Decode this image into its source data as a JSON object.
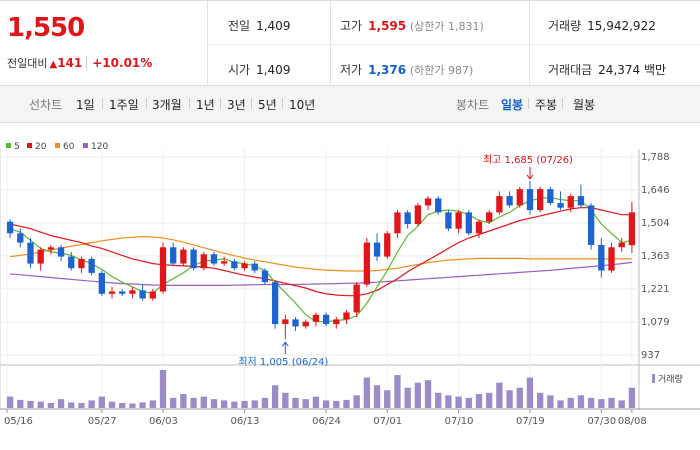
{
  "quote": {
    "price": "1,550",
    "change_label": "전일대비",
    "change_arrow": "▲",
    "change_value": "141",
    "change_pct": "+10.01%",
    "prev_close_label": "전일",
    "prev_close": "1,409",
    "open_label": "시가",
    "open": "1,409",
    "high_label": "고가",
    "high": "1,595",
    "upper_limit": "(상한가 1,831)",
    "low_label": "저가",
    "low": "1,376",
    "lower_limit": "(하한가 987)",
    "volume_label": "거래량",
    "volume": "15,942,922",
    "amount_label": "거래대금",
    "amount": "24,374",
    "amount_unit": "백만"
  },
  "toolbar": {
    "period_label": "선차트",
    "periods": [
      "1일",
      "1주일",
      "3개월",
      "1년",
      "3년",
      "5년",
      "10년"
    ],
    "candle_label": "봉차트",
    "candles": [
      "일봉",
      "주봉",
      "월봉"
    ],
    "active_candle": "일봉"
  },
  "colors": {
    "up": "#e0161b",
    "down": "#1e64d0",
    "ma5": "#5cb82e",
    "ma20": "#e0161b",
    "ma60": "#f08f1e",
    "ma120": "#9a5ec2",
    "volume": "#9b8cc9"
  },
  "chart_data": {
    "type": "candlestick",
    "x_ticks": [
      "05/16",
      "05/27",
      "06/03",
      "06/13",
      "06/24",
      "07/01",
      "07/10",
      "07/19",
      "07/30",
      "08/08"
    ],
    "y_ticks": [
      1788,
      1646,
      1504,
      1363,
      1221,
      1079,
      937
    ],
    "ylim": [
      937,
      1788
    ],
    "legend": [
      {
        "name": "5",
        "color": "#5cb82e"
      },
      {
        "name": "20",
        "color": "#e0161b"
      },
      {
        "name": "60",
        "color": "#f08f1e"
      },
      {
        "name": "120",
        "color": "#9a5ec2"
      }
    ],
    "volume_legend": "거래량",
    "annotations": {
      "high": "최고 1,685 (07/26)",
      "low": "최저 1,005 (06/24)"
    },
    "candles": [
      [
        1510,
        1520,
        1440,
        1460
      ],
      [
        1460,
        1480,
        1400,
        1420
      ],
      [
        1420,
        1440,
        1310,
        1330
      ],
      [
        1330,
        1400,
        1300,
        1390
      ],
      [
        1390,
        1410,
        1370,
        1400
      ],
      [
        1400,
        1410,
        1340,
        1360
      ],
      [
        1360,
        1380,
        1300,
        1310
      ],
      [
        1310,
        1360,
        1290,
        1350
      ],
      [
        1350,
        1360,
        1280,
        1290
      ],
      [
        1290,
        1300,
        1190,
        1200
      ],
      [
        1200,
        1230,
        1180,
        1210
      ],
      [
        1210,
        1220,
        1190,
        1200
      ],
      [
        1200,
        1230,
        1180,
        1215
      ],
      [
        1215,
        1240,
        1170,
        1180
      ],
      [
        1180,
        1220,
        1170,
        1210
      ],
      [
        1210,
        1420,
        1200,
        1400
      ],
      [
        1400,
        1420,
        1320,
        1330
      ],
      [
        1330,
        1400,
        1320,
        1390
      ],
      [
        1390,
        1400,
        1300,
        1310
      ],
      [
        1310,
        1380,
        1300,
        1370
      ],
      [
        1370,
        1380,
        1320,
        1330
      ],
      [
        1330,
        1360,
        1320,
        1340
      ],
      [
        1340,
        1350,
        1300,
        1310
      ],
      [
        1310,
        1340,
        1300,
        1330
      ],
      [
        1330,
        1340,
        1290,
        1300
      ],
      [
        1300,
        1310,
        1240,
        1250
      ],
      [
        1250,
        1260,
        1050,
        1070
      ],
      [
        1070,
        1110,
        1005,
        1090
      ],
      [
        1090,
        1100,
        1040,
        1060
      ],
      [
        1060,
        1090,
        1050,
        1080
      ],
      [
        1080,
        1120,
        1060,
        1110
      ],
      [
        1110,
        1120,
        1060,
        1070
      ],
      [
        1070,
        1100,
        1050,
        1090
      ],
      [
        1090,
        1130,
        1070,
        1120
      ],
      [
        1120,
        1250,
        1100,
        1240
      ],
      [
        1240,
        1440,
        1230,
        1420
      ],
      [
        1420,
        1460,
        1340,
        1360
      ],
      [
        1360,
        1470,
        1350,
        1460
      ],
      [
        1460,
        1560,
        1440,
        1550
      ],
      [
        1550,
        1560,
        1480,
        1500
      ],
      [
        1500,
        1590,
        1490,
        1580
      ],
      [
        1580,
        1620,
        1560,
        1610
      ],
      [
        1610,
        1620,
        1540,
        1550
      ],
      [
        1550,
        1560,
        1470,
        1480
      ],
      [
        1480,
        1560,
        1460,
        1550
      ],
      [
        1550,
        1560,
        1450,
        1460
      ],
      [
        1460,
        1520,
        1440,
        1510
      ],
      [
        1510,
        1560,
        1500,
        1550
      ],
      [
        1550,
        1640,
        1540,
        1620
      ],
      [
        1620,
        1640,
        1570,
        1580
      ],
      [
        1580,
        1660,
        1570,
        1650
      ],
      [
        1650,
        1685,
        1540,
        1560
      ],
      [
        1560,
        1660,
        1550,
        1650
      ],
      [
        1650,
        1660,
        1580,
        1590
      ],
      [
        1590,
        1640,
        1560,
        1570
      ],
      [
        1570,
        1630,
        1550,
        1620
      ],
      [
        1620,
        1670,
        1570,
        1580
      ],
      [
        1580,
        1590,
        1390,
        1410
      ],
      [
        1410,
        1440,
        1270,
        1300
      ],
      [
        1300,
        1420,
        1290,
        1400
      ],
      [
        1400,
        1440,
        1380,
        1420
      ],
      [
        1409,
        1595,
        1376,
        1550
      ]
    ],
    "ma5": [
      1480,
      1465,
      1430,
      1395,
      1380,
      1375,
      1365,
      1345,
      1330,
      1305,
      1275,
      1250,
      1230,
      1210,
      1202,
      1240,
      1265,
      1290,
      1322,
      1340,
      1345,
      1350,
      1335,
      1330,
      1320,
      1300,
      1250,
      1205,
      1160,
      1110,
      1080,
      1080,
      1085,
      1090,
      1105,
      1160,
      1230,
      1300,
      1380,
      1450,
      1490,
      1540,
      1555,
      1560,
      1555,
      1540,
      1515,
      1505,
      1530,
      1550,
      1580,
      1600,
      1610,
      1615,
      1605,
      1600,
      1600,
      1560,
      1500,
      1460,
      1420,
      1430
    ],
    "ma20": [
      1500,
      1490,
      1480,
      1465,
      1450,
      1440,
      1430,
      1420,
      1405,
      1395,
      1380,
      1365,
      1350,
      1340,
      1330,
      1325,
      1322,
      1320,
      1318,
      1315,
      1310,
      1300,
      1290,
      1280,
      1272,
      1265,
      1255,
      1245,
      1235,
      1225,
      1210,
      1200,
      1195,
      1192,
      1192,
      1200,
      1215,
      1240,
      1265,
      1295,
      1320,
      1345,
      1370,
      1395,
      1420,
      1440,
      1455,
      1470,
      1485,
      1500,
      1515,
      1525,
      1535,
      1545,
      1555,
      1565,
      1570,
      1570,
      1560,
      1550,
      1540,
      1540
    ],
    "ma60": [
      1360,
      1365,
      1372,
      1380,
      1388,
      1396,
      1405,
      1412,
      1420,
      1428,
      1434,
      1440,
      1443,
      1446,
      1444,
      1440,
      1432,
      1422,
      1410,
      1398,
      1386,
      1374,
      1364,
      1354,
      1345,
      1338,
      1330,
      1322,
      1315,
      1310,
      1305,
      1302,
      1300,
      1298,
      1298,
      1298,
      1300,
      1305,
      1310,
      1318,
      1326,
      1334,
      1340,
      1345,
      1348,
      1350,
      1352,
      1352,
      1352,
      1352,
      1352,
      1350,
      1350,
      1350,
      1350,
      1350,
      1350,
      1350,
      1350,
      1350,
      1350,
      1350
    ],
    "ma120": [
      1285,
      1282,
      1278,
      1274,
      1270,
      1266,
      1262,
      1258,
      1254,
      1250,
      1247,
      1244,
      1242,
      1240,
      1238,
      1237,
      1236,
      1236,
      1236,
      1236,
      1236,
      1236,
      1237,
      1238,
      1239,
      1240,
      1240,
      1240,
      1240,
      1241,
      1242,
      1243,
      1244,
      1245,
      1246,
      1248,
      1250,
      1253,
      1256,
      1259,
      1262,
      1265,
      1268,
      1271,
      1274,
      1277,
      1280,
      1283,
      1286,
      1289,
      1292,
      1295,
      1298,
      1301,
      1305,
      1309,
      1313,
      1317,
      1321,
      1325,
      1330,
      1335
    ],
    "volume": [
      4.5,
      3.2,
      2.8,
      2.5,
      2.0,
      3.5,
      2.2,
      2.0,
      3.0,
      4.5,
      2.5,
      2.0,
      1.8,
      2.2,
      3.0,
      15.0,
      4.0,
      5.5,
      4.0,
      4.5,
      3.5,
      3.0,
      2.5,
      2.8,
      3.0,
      4.0,
      9.0,
      6.0,
      4.0,
      3.5,
      4.5,
      3.0,
      2.8,
      3.2,
      5.0,
      12.0,
      9.0,
      7.0,
      13.0,
      8.0,
      10.0,
      11.0,
      6.0,
      5.0,
      4.5,
      4.0,
      5.5,
      6.0,
      10.0,
      7.0,
      8.0,
      12.0,
      6.0,
      5.0,
      3.0,
      4.0,
      5.0,
      4.0,
      3.5,
      4.0,
      3.0,
      8.0
    ]
  }
}
